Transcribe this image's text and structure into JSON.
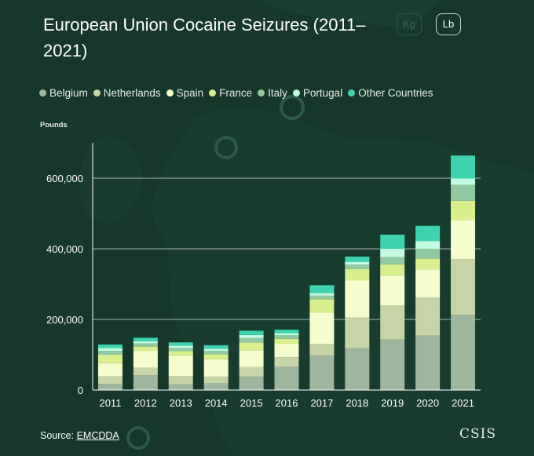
{
  "title": "European Union Cocaine Seizures (2011–2021)",
  "units": {
    "kg": "Kg",
    "lb": "Lb"
  },
  "source_label": "Source:",
  "source_link": "EMCDDA",
  "brand": "CSIS",
  "colors": {
    "background": "#15382b",
    "Belgium": "#9eb59e",
    "Netherlands": "#c6d4a6",
    "Spain": "#f5fdcc",
    "France": "#d9ee8d",
    "Italy": "#91c9a0",
    "Portugal": "#c2fbe2",
    "Other Countries": "#3dd3b0"
  },
  "chart_data": {
    "type": "bar",
    "stacked": true,
    "ylabel": "Pounds",
    "ylim": [
      0,
      700000
    ],
    "yticks": [
      0,
      200000,
      400000,
      600000
    ],
    "ytick_labels": [
      "0",
      "200,000",
      "400,000",
      "600,000"
    ],
    "grid": true,
    "legend_position": "top-left",
    "categories": [
      "2011",
      "2012",
      "2013",
      "2014",
      "2015",
      "2016",
      "2017",
      "2018",
      "2019",
      "2020",
      "2021"
    ],
    "series": [
      {
        "name": "Belgium",
        "values": [
          17000,
          42000,
          16000,
          20000,
          38000,
          66000,
          98000,
          118000,
          143000,
          154000,
          213000
        ]
      },
      {
        "name": "Netherlands",
        "values": [
          22000,
          21000,
          24000,
          18000,
          27000,
          27000,
          33000,
          87000,
          97000,
          108000,
          158000
        ]
      },
      {
        "name": "Spain",
        "values": [
          37000,
          48000,
          58000,
          49000,
          48000,
          38000,
          88000,
          105000,
          85000,
          80000,
          110000
        ]
      },
      {
        "name": "France",
        "values": [
          24000,
          12000,
          12000,
          14000,
          22000,
          14000,
          38000,
          33000,
          31000,
          30000,
          55000
        ]
      },
      {
        "name": "Italy",
        "values": [
          11000,
          9000,
          9000,
          10000,
          12000,
          10000,
          10000,
          12000,
          20000,
          28000,
          45000
        ]
      },
      {
        "name": "Portugal",
        "values": [
          8000,
          6000,
          7000,
          6000,
          9000,
          6000,
          8000,
          8000,
          24000,
          22000,
          18000
        ]
      },
      {
        "name": "Other Countries",
        "values": [
          10000,
          10000,
          9000,
          10000,
          12000,
          10000,
          22000,
          15000,
          40000,
          43000,
          65000
        ]
      }
    ]
  }
}
